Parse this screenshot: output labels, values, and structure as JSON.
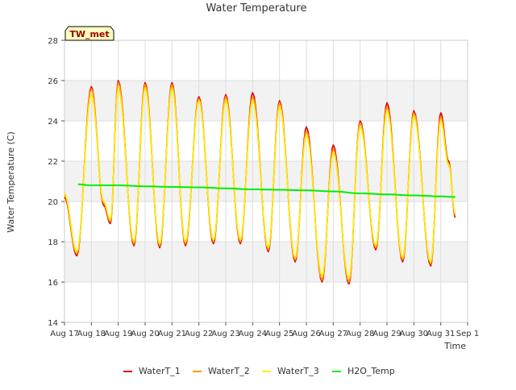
{
  "chart_data": {
    "type": "line",
    "title": "Water Temperature",
    "xlabel": "Time",
    "ylabel": "Water Temperature (C)",
    "station_label": "TW_met",
    "xlim": [
      "2023-08-17",
      "2023-09-01"
    ],
    "ylim": [
      14,
      28
    ],
    "y_ticks": [
      14,
      16,
      18,
      20,
      22,
      24,
      26,
      28
    ],
    "x_ticks": [
      {
        "date": "2023-08-17",
        "label": "Aug 17"
      },
      {
        "date": "2023-08-18",
        "label": "Aug 18"
      },
      {
        "date": "2023-08-19",
        "label": "Aug 19"
      },
      {
        "date": "2023-08-20",
        "label": "Aug 20"
      },
      {
        "date": "2023-08-21",
        "label": "Aug 21"
      },
      {
        "date": "2023-08-22",
        "label": "Aug 22"
      },
      {
        "date": "2023-08-23",
        "label": "Aug 23"
      },
      {
        "date": "2023-08-24",
        "label": "Aug 24"
      },
      {
        "date": "2023-08-25",
        "label": "Aug 25"
      },
      {
        "date": "2023-08-26",
        "label": "Aug 26"
      },
      {
        "date": "2023-08-27",
        "label": "Aug 27"
      },
      {
        "date": "2023-08-28",
        "label": "Aug 28"
      },
      {
        "date": "2023-08-29",
        "label": "Aug 29"
      },
      {
        "date": "2023-08-30",
        "label": "Aug 30"
      },
      {
        "date": "2023-08-31",
        "label": "Aug 31"
      },
      {
        "date": "2023-09-01",
        "label": "Sep 1"
      }
    ],
    "grid": true,
    "background_bands": true,
    "legend_position": "bottom",
    "series": [
      {
        "name": "WaterT_1",
        "color": "#dd0000",
        "x": [
          "2023-08-17 00:00",
          "2023-08-17 11:00",
          "2023-08-18 00:00",
          "2023-08-18 11:00",
          "2023-08-18 17:00",
          "2023-08-19 00:00",
          "2023-08-19 14:00",
          "2023-08-20 00:00",
          "2023-08-20 13:00",
          "2023-08-21 00:00",
          "2023-08-21 12:00",
          "2023-08-22 00:00",
          "2023-08-22 13:00",
          "2023-08-23 00:00",
          "2023-08-23 13:00",
          "2023-08-24 00:00",
          "2023-08-24 14:00",
          "2023-08-25 00:00",
          "2023-08-25 14:00",
          "2023-08-26 00:00",
          "2023-08-26 14:00",
          "2023-08-27 00:00",
          "2023-08-27 14:00",
          "2023-08-28 00:00",
          "2023-08-28 14:00",
          "2023-08-29 00:00",
          "2023-08-29 14:00",
          "2023-08-30 00:00",
          "2023-08-30 15:00",
          "2023-08-31 00:00",
          "2023-08-31 07:00",
          "2023-08-31 13:00"
        ],
        "y": [
          20.2,
          17.3,
          25.7,
          19.8,
          18.9,
          26.0,
          17.8,
          25.9,
          17.7,
          25.9,
          17.8,
          25.2,
          17.9,
          25.3,
          17.9,
          25.4,
          17.5,
          25.0,
          17.0,
          23.7,
          16.0,
          22.8,
          15.9,
          24.0,
          17.6,
          24.9,
          17.0,
          24.5,
          16.8,
          24.4,
          22.0,
          19.2
        ]
      },
      {
        "name": "WaterT_2",
        "color": "#ff9900",
        "x": [
          "2023-08-17 00:00",
          "2023-08-17 11:00",
          "2023-08-18 00:00",
          "2023-08-18 11:00",
          "2023-08-18 17:00",
          "2023-08-19 00:00",
          "2023-08-19 14:00",
          "2023-08-20 00:00",
          "2023-08-20 13:00",
          "2023-08-21 00:00",
          "2023-08-21 12:00",
          "2023-08-22 00:00",
          "2023-08-22 13:00",
          "2023-08-23 00:00",
          "2023-08-23 13:00",
          "2023-08-24 00:00",
          "2023-08-24 14:00",
          "2023-08-25 00:00",
          "2023-08-25 14:00",
          "2023-08-26 00:00",
          "2023-08-26 14:00",
          "2023-08-27 00:00",
          "2023-08-27 14:00",
          "2023-08-28 00:00",
          "2023-08-28 14:00",
          "2023-08-29 00:00",
          "2023-08-29 14:00",
          "2023-08-30 00:00",
          "2023-08-30 15:00",
          "2023-08-31 00:00",
          "2023-08-31 07:00",
          "2023-08-31 13:00"
        ],
        "y": [
          20.3,
          17.4,
          25.6,
          19.9,
          19.0,
          25.9,
          17.9,
          25.8,
          17.8,
          25.8,
          17.9,
          25.1,
          18.0,
          25.2,
          18.0,
          25.2,
          17.6,
          24.9,
          17.1,
          23.5,
          16.1,
          22.6,
          16.0,
          23.9,
          17.7,
          24.7,
          17.1,
          24.4,
          16.9,
          24.2,
          21.9,
          19.3
        ]
      },
      {
        "name": "WaterT_3",
        "color": "#ffee00",
        "x": [
          "2023-08-17 00:00",
          "2023-08-17 11:00",
          "2023-08-18 00:00",
          "2023-08-18 11:00",
          "2023-08-18 17:00",
          "2023-08-19 00:00",
          "2023-08-19 14:00",
          "2023-08-20 00:00",
          "2023-08-20 13:00",
          "2023-08-21 00:00",
          "2023-08-21 12:00",
          "2023-08-22 00:00",
          "2023-08-22 13:00",
          "2023-08-23 00:00",
          "2023-08-23 13:00",
          "2023-08-24 00:00",
          "2023-08-24 14:00",
          "2023-08-25 00:00",
          "2023-08-25 14:00",
          "2023-08-26 00:00",
          "2023-08-26 14:00",
          "2023-08-27 00:00",
          "2023-08-27 14:00",
          "2023-08-28 00:00",
          "2023-08-28 14:00",
          "2023-08-29 00:00",
          "2023-08-29 14:00",
          "2023-08-30 00:00",
          "2023-08-30 15:00",
          "2023-08-31 00:00",
          "2023-08-31 07:00",
          "2023-08-31 13:00"
        ],
        "y": [
          20.4,
          17.5,
          25.3,
          20.0,
          19.1,
          25.6,
          18.0,
          25.6,
          17.9,
          25.6,
          18.0,
          25.0,
          18.1,
          25.0,
          18.1,
          25.0,
          17.7,
          24.7,
          17.2,
          23.3,
          16.3,
          22.4,
          16.2,
          23.7,
          17.8,
          24.5,
          17.2,
          24.2,
          17.0,
          24.0,
          21.8,
          19.4
        ]
      },
      {
        "name": "H2O_Temp",
        "color": "#00ee00",
        "x": [
          "2023-08-17 12:00",
          "2023-08-18 00:00",
          "2023-08-19 00:00",
          "2023-08-20 00:00",
          "2023-08-21 00:00",
          "2023-08-22 00:00",
          "2023-08-23 00:00",
          "2023-08-24 00:00",
          "2023-08-25 00:00",
          "2023-08-26 00:00",
          "2023-08-27 00:00",
          "2023-08-28 00:00",
          "2023-08-29 00:00",
          "2023-08-30 00:00",
          "2023-08-31 00:00",
          "2023-08-31 13:00"
        ],
        "y": [
          20.85,
          20.8,
          20.8,
          20.75,
          20.72,
          20.7,
          20.65,
          20.6,
          20.58,
          20.55,
          20.5,
          20.4,
          20.35,
          20.3,
          20.25,
          20.22
        ]
      }
    ]
  }
}
